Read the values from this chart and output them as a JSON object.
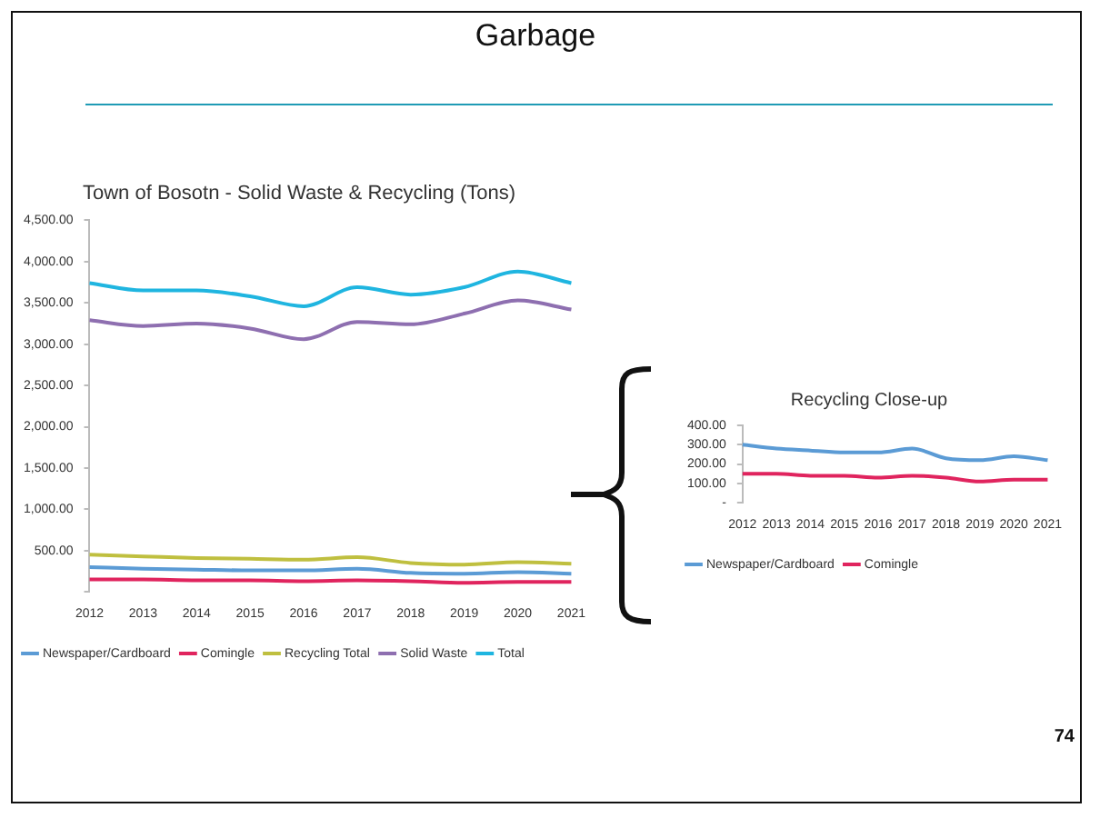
{
  "chart_data": [
    {
      "type": "line",
      "title": "Town of Bosotn - Solid Waste & Recycling (Tons)",
      "annotations": [
        "Garbage"
      ],
      "categories": [
        "2012",
        "2013",
        "2014",
        "2015",
        "2016",
        "2017",
        "2018",
        "2019",
        "2020",
        "2021"
      ],
      "series": [
        {
          "name": "Newspaper/Cardboard",
          "color": "#5b9bd5",
          "values": [
            300,
            280,
            270,
            260,
            260,
            280,
            230,
            220,
            240,
            220
          ]
        },
        {
          "name": "Comingle",
          "color": "#e0245e",
          "values": [
            150,
            150,
            140,
            140,
            130,
            140,
            130,
            110,
            120,
            120
          ]
        },
        {
          "name": "Recycling Total",
          "color": "#bfbf3f",
          "values": [
            450,
            430,
            410,
            400,
            390,
            420,
            350,
            330,
            360,
            340
          ]
        },
        {
          "name": "Solid Waste",
          "color": "#8e6fb0",
          "values": [
            3290,
            3220,
            3250,
            3190,
            3060,
            3270,
            3240,
            3370,
            3530,
            3420
          ]
        },
        {
          "name": "Total",
          "color": "#1fb5e0",
          "values": [
            3740,
            3650,
            3650,
            3580,
            3460,
            3690,
            3600,
            3690,
            3880,
            3740
          ]
        }
      ],
      "ylim": [
        0,
        4500
      ],
      "yticks": [
        {
          "value": 0,
          "label": null
        },
        {
          "value": 500,
          "label": "500.00"
        },
        {
          "value": 1000,
          "label": "1,000.00"
        },
        {
          "value": 1500,
          "label": "1,500.00"
        },
        {
          "value": 2000,
          "label": "2,000.00"
        },
        {
          "value": 2500,
          "label": "2,500.00"
        },
        {
          "value": 3000,
          "label": "3,000.00"
        },
        {
          "value": 3500,
          "label": "3,500.00"
        },
        {
          "value": 4000,
          "label": "4,000.00"
        },
        {
          "value": 4500,
          "label": "4,500.00"
        }
      ],
      "grid": false,
      "legend": "bottom",
      "marker": "none"
    },
    {
      "type": "line",
      "title": "Recycling Close-up",
      "annotations": [
        "74"
      ],
      "categories": [
        "2012",
        "2013",
        "2014",
        "2015",
        "2016",
        "2017",
        "2018",
        "2019",
        "2020",
        "2021"
      ],
      "series": [
        {
          "name": "Newspaper/Cardboard",
          "color": "#5b9bd5",
          "values": [
            300,
            280,
            270,
            260,
            260,
            280,
            230,
            220,
            240,
            220
          ]
        },
        {
          "name": "Comingle",
          "color": "#e0245e",
          "values": [
            150,
            150,
            140,
            140,
            130,
            140,
            130,
            110,
            120,
            120
          ]
        }
      ],
      "ylim": [
        0,
        400
      ],
      "yticks": [
        {
          "value": 0,
          "label": "-"
        },
        {
          "value": 100,
          "label": "100.00"
        },
        {
          "value": 200,
          "label": "200.00"
        },
        {
          "value": 300,
          "label": "300.00"
        },
        {
          "value": 400,
          "label": "400.00"
        }
      ],
      "grid": false,
      "legend": "bottom",
      "marker": "none"
    }
  ]
}
